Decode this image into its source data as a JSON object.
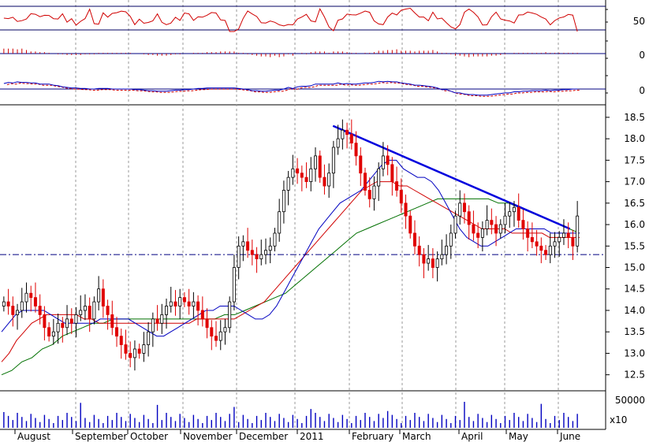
{
  "chart_data": {
    "type": "candlestick",
    "time_labels": [
      "August",
      "September",
      "October",
      "November",
      "December",
      "2011",
      "February",
      "March",
      "April",
      "May",
      "June"
    ],
    "price": {
      "ylim": [
        12.2,
        18.7
      ],
      "yticks": [
        "18.5",
        "18.0",
        "17.5",
        "17.0",
        "16.5",
        "16.0",
        "15.5",
        "15.0",
        "14.5",
        "14.0",
        "13.5",
        "13.0",
        "12.5"
      ],
      "ytick_values": [
        18.5,
        18.0,
        17.5,
        17.0,
        16.5,
        16.0,
        15.5,
        15.0,
        14.5,
        14.0,
        13.5,
        13.0,
        12.5
      ],
      "close": [
        14.2,
        14.1,
        13.9,
        14.0,
        14.2,
        14.4,
        14.3,
        14.1,
        13.9,
        13.6,
        13.4,
        13.5,
        13.7,
        13.6,
        13.8,
        13.7,
        13.9,
        14.0,
        14.1,
        13.8,
        14.2,
        14.5,
        14.1,
        13.9,
        13.6,
        13.4,
        13.2,
        13.0,
        12.9,
        13.1,
        13.0,
        13.2,
        13.5,
        13.8,
        13.7,
        13.9,
        14.1,
        14.2,
        14.1,
        14.3,
        14.2,
        14.1,
        14.2,
        14.0,
        13.8,
        13.6,
        13.4,
        13.3,
        13.5,
        13.6,
        14.2,
        15.0,
        15.5,
        15.6,
        15.4,
        15.3,
        15.2,
        15.3,
        15.4,
        15.5,
        15.8,
        16.3,
        16.8,
        17.1,
        17.3,
        17.2,
        17.1,
        17.0,
        17.3,
        17.6,
        17.1,
        16.9,
        17.2,
        17.8,
        18.0,
        18.2,
        18.1,
        17.9,
        17.6,
        17.2,
        16.8,
        16.6,
        16.9,
        17.3,
        17.6,
        17.4,
        17.0,
        16.8,
        16.5,
        16.2,
        15.8,
        15.5,
        15.3,
        15.1,
        15.2,
        15.0,
        15.2,
        15.3,
        15.5,
        15.8,
        16.2,
        16.5,
        16.3,
        16.0,
        15.8,
        15.7,
        15.9,
        16.1,
        16.0,
        15.8,
        16.0,
        16.2,
        16.3,
        16.4,
        16.1,
        15.9,
        15.7,
        15.6,
        15.5,
        15.4,
        15.3,
        15.5,
        15.6,
        15.7,
        15.8,
        15.7,
        15.5,
        16.2
      ],
      "high_low_pad": 0.25,
      "sma_short": [
        13.5,
        13.7,
        13.9,
        14.0,
        14.0,
        14.0,
        14.0,
        13.9,
        13.8,
        13.7,
        13.7,
        13.7,
        13.7,
        13.7,
        13.8,
        13.8,
        13.8,
        13.8,
        13.8,
        13.7,
        13.6,
        13.5,
        13.4,
        13.4,
        13.5,
        13.6,
        13.7,
        13.8,
        13.9,
        14.0,
        14.0,
        14.1,
        14.1,
        14.1,
        14.0,
        13.9,
        13.8,
        13.8,
        13.9,
        14.1,
        14.4,
        14.7,
        15.0,
        15.3,
        15.6,
        15.9,
        16.1,
        16.3,
        16.5,
        16.6,
        16.7,
        16.8,
        17.0,
        17.2,
        17.4,
        17.5,
        17.5,
        17.3,
        17.2,
        17.1,
        17.1,
        17.0,
        16.8,
        16.5,
        16.2,
        15.9,
        15.7,
        15.6,
        15.5,
        15.5,
        15.6,
        15.7,
        15.8,
        15.9,
        15.9,
        15.9,
        15.9,
        15.9,
        15.8,
        15.8,
        15.8,
        15.8,
        15.8
      ],
      "sma_mid": [
        12.8,
        13.0,
        13.3,
        13.5,
        13.7,
        13.8,
        13.9,
        13.9,
        13.9,
        13.9,
        13.9,
        13.8,
        13.8,
        13.7,
        13.7,
        13.7,
        13.7,
        13.7,
        13.7,
        13.7,
        13.7,
        13.7,
        13.7,
        13.7,
        13.7,
        13.7,
        13.8,
        13.8,
        13.8,
        13.8,
        13.8,
        13.8,
        13.9,
        14.0,
        14.1,
        14.2,
        14.4,
        14.6,
        14.8,
        15.0,
        15.2,
        15.4,
        15.6,
        15.8,
        16.0,
        16.2,
        16.4,
        16.6,
        16.8,
        16.9,
        17.0,
        17.0,
        17.0,
        16.9,
        16.9,
        16.8,
        16.7,
        16.6,
        16.5,
        16.4,
        16.3,
        16.2,
        16.1,
        16.0,
        15.9,
        15.9,
        15.9,
        15.9,
        15.8,
        15.8,
        15.8,
        15.8,
        15.8,
        15.7,
        15.7,
        15.7,
        15.7,
        15.7
      ],
      "sma_long": [
        12.5,
        12.6,
        12.8,
        12.9,
        13.1,
        13.2,
        13.4,
        13.5,
        13.6,
        13.7,
        13.7,
        13.8,
        13.8,
        13.8,
        13.8,
        13.8,
        13.8,
        13.8,
        13.8,
        13.8,
        13.8,
        13.8,
        13.9,
        13.9,
        14.0,
        14.1,
        14.2,
        14.3,
        14.4,
        14.6,
        14.8,
        15.0,
        15.2,
        15.4,
        15.6,
        15.8,
        15.9,
        16.0,
        16.1,
        16.2,
        16.3,
        16.4,
        16.5,
        16.6,
        16.6,
        16.6,
        16.6,
        16.6,
        16.6,
        16.5,
        16.5,
        16.4,
        16.3,
        16.2,
        16.1,
        16.0,
        15.9,
        15.8
      ],
      "support_level": 15.3,
      "trendline": [
        [
          17.2,
          18.3
        ],
        [
          29.5,
          15.9
        ]
      ]
    },
    "oscillator": {
      "ytick": "50",
      "upper_level": 75,
      "lower_level": 25
    },
    "momentum_histogram": {
      "ytick": "0"
    },
    "macd": {
      "ytick": "0"
    },
    "volume": {
      "ytick": "50000",
      "multiplier_label": "x10"
    }
  }
}
